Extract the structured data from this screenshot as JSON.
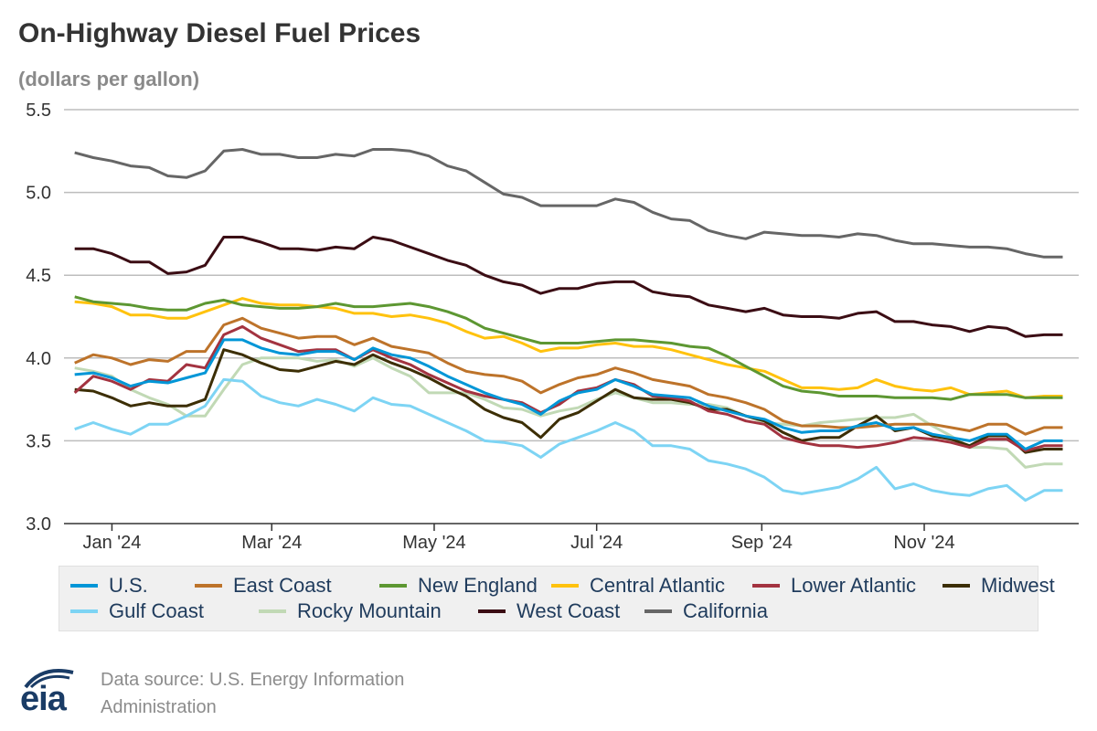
{
  "chart_data": {
    "type": "line",
    "title": "On-Highway Diesel Fuel Prices",
    "subtitle": "(dollars per gallon)",
    "ylim": [
      3.0,
      5.5
    ],
    "yticks": [
      "3.0",
      "3.5",
      "4.0",
      "4.5",
      "5.0",
      "5.5"
    ],
    "yticks_values": [
      3.0,
      3.5,
      4.0,
      4.5,
      5.0,
      5.5
    ],
    "grid": true,
    "legend_position": "bottom",
    "x_dates": [
      "2023-12-18",
      "2023-12-25",
      "2024-01-01",
      "2024-01-08",
      "2024-01-15",
      "2024-01-22",
      "2024-01-29",
      "2024-02-05",
      "2024-02-12",
      "2024-02-19",
      "2024-02-26",
      "2024-03-04",
      "2024-03-11",
      "2024-03-18",
      "2024-03-25",
      "2024-04-01",
      "2024-04-08",
      "2024-04-15",
      "2024-04-22",
      "2024-04-29",
      "2024-05-06",
      "2024-05-13",
      "2024-05-20",
      "2024-05-27",
      "2024-06-03",
      "2024-06-10",
      "2024-06-17",
      "2024-06-24",
      "2024-07-01",
      "2024-07-08",
      "2024-07-15",
      "2024-07-22",
      "2024-07-29",
      "2024-08-05",
      "2024-08-12",
      "2024-08-19",
      "2024-08-26",
      "2024-09-02",
      "2024-09-09",
      "2024-09-16",
      "2024-09-23",
      "2024-09-30",
      "2024-10-07",
      "2024-10-14",
      "2024-10-21",
      "2024-10-28",
      "2024-11-04",
      "2024-11-11",
      "2024-11-18",
      "2024-11-25",
      "2024-12-02",
      "2024-12-09",
      "2024-12-16",
      "2024-12-23"
    ],
    "x_ticks": [
      {
        "label": "Jan '24",
        "date": "2024-01-01"
      },
      {
        "label": "Mar '24",
        "date": "2024-03-01"
      },
      {
        "label": "May '24",
        "date": "2024-05-01"
      },
      {
        "label": "Jul '24",
        "date": "2024-07-01"
      },
      {
        "label": "Sep '24",
        "date": "2024-09-01"
      },
      {
        "label": "Nov '24",
        "date": "2024-11-01"
      }
    ],
    "series": [
      {
        "name": "U.S.",
        "color": "#0096d7",
        "values": [
          3.9,
          3.91,
          3.88,
          3.83,
          3.86,
          3.85,
          3.88,
          3.91,
          4.11,
          4.11,
          4.06,
          4.03,
          4.02,
          4.04,
          4.04,
          3.99,
          4.06,
          4.02,
          4.0,
          3.95,
          3.89,
          3.84,
          3.79,
          3.75,
          3.72,
          3.66,
          3.74,
          3.79,
          3.81,
          3.87,
          3.83,
          3.78,
          3.77,
          3.76,
          3.71,
          3.68,
          3.65,
          3.63,
          3.58,
          3.55,
          3.56,
          3.56,
          3.59,
          3.61,
          3.57,
          3.58,
          3.54,
          3.52,
          3.5,
          3.54,
          3.54,
          3.45,
          3.5,
          3.5
        ]
      },
      {
        "name": "East Coast",
        "color": "#bd732a",
        "values": [
          3.97,
          4.02,
          4.0,
          3.96,
          3.99,
          3.98,
          4.04,
          4.04,
          4.2,
          4.24,
          4.18,
          4.15,
          4.12,
          4.13,
          4.13,
          4.08,
          4.12,
          4.07,
          4.05,
          4.03,
          3.97,
          3.92,
          3.9,
          3.89,
          3.86,
          3.79,
          3.84,
          3.88,
          3.9,
          3.94,
          3.91,
          3.87,
          3.85,
          3.83,
          3.78,
          3.76,
          3.73,
          3.69,
          3.62,
          3.59,
          3.59,
          3.58,
          3.58,
          3.59,
          3.6,
          3.6,
          3.6,
          3.58,
          3.56,
          3.6,
          3.6,
          3.54,
          3.58,
          3.58
        ]
      },
      {
        "name": "New England",
        "color": "#5d9732",
        "values": [
          4.37,
          4.34,
          4.33,
          4.32,
          4.3,
          4.29,
          4.29,
          4.33,
          4.35,
          4.32,
          4.31,
          4.3,
          4.3,
          4.31,
          4.33,
          4.31,
          4.31,
          4.32,
          4.33,
          4.31,
          4.28,
          4.24,
          4.18,
          4.15,
          4.12,
          4.09,
          4.09,
          4.09,
          4.1,
          4.11,
          4.11,
          4.1,
          4.09,
          4.07,
          4.06,
          4.01,
          3.95,
          3.89,
          3.83,
          3.8,
          3.79,
          3.77,
          3.77,
          3.77,
          3.76,
          3.76,
          3.76,
          3.75,
          3.78,
          3.78,
          3.78,
          3.76,
          3.76,
          3.76
        ]
      },
      {
        "name": "Central Atlantic",
        "color": "#ffc20e",
        "values": [
          4.34,
          4.33,
          4.31,
          4.26,
          4.26,
          4.24,
          4.24,
          4.28,
          4.32,
          4.36,
          4.33,
          4.32,
          4.32,
          4.31,
          4.3,
          4.27,
          4.27,
          4.25,
          4.26,
          4.24,
          4.21,
          4.16,
          4.12,
          4.13,
          4.09,
          4.04,
          4.06,
          4.06,
          4.08,
          4.09,
          4.07,
          4.07,
          4.05,
          4.02,
          3.99,
          3.96,
          3.94,
          3.92,
          3.87,
          3.82,
          3.82,
          3.81,
          3.82,
          3.87,
          3.83,
          3.81,
          3.8,
          3.82,
          3.78,
          3.79,
          3.8,
          3.76,
          3.77,
          3.77
        ]
      },
      {
        "name": "Lower Atlantic",
        "color": "#a33340",
        "values": [
          3.79,
          3.89,
          3.86,
          3.81,
          3.87,
          3.86,
          3.96,
          3.94,
          4.14,
          4.19,
          4.12,
          4.08,
          4.04,
          4.05,
          4.05,
          3.99,
          4.05,
          4.0,
          3.96,
          3.9,
          3.85,
          3.8,
          3.77,
          3.75,
          3.73,
          3.67,
          3.72,
          3.8,
          3.82,
          3.87,
          3.84,
          3.77,
          3.76,
          3.74,
          3.68,
          3.66,
          3.62,
          3.6,
          3.52,
          3.49,
          3.47,
          3.47,
          3.46,
          3.47,
          3.49,
          3.52,
          3.51,
          3.49,
          3.46,
          3.51,
          3.51,
          3.44,
          3.47,
          3.47
        ]
      },
      {
        "name": "Midwest",
        "color": "#3c2e05",
        "values": [
          3.81,
          3.8,
          3.76,
          3.71,
          3.73,
          3.71,
          3.71,
          3.75,
          4.05,
          4.02,
          3.97,
          3.93,
          3.92,
          3.95,
          3.98,
          3.96,
          4.02,
          3.97,
          3.93,
          3.88,
          3.82,
          3.77,
          3.69,
          3.64,
          3.61,
          3.52,
          3.63,
          3.67,
          3.74,
          3.81,
          3.76,
          3.75,
          3.75,
          3.73,
          3.69,
          3.69,
          3.65,
          3.62,
          3.55,
          3.5,
          3.52,
          3.52,
          3.59,
          3.65,
          3.56,
          3.58,
          3.53,
          3.51,
          3.47,
          3.53,
          3.53,
          3.43,
          3.45,
          3.45
        ]
      },
      {
        "name": "Gulf Coast",
        "color": "#7dd4f4",
        "values": [
          3.57,
          3.61,
          3.57,
          3.54,
          3.6,
          3.6,
          3.65,
          3.71,
          3.87,
          3.86,
          3.77,
          3.73,
          3.71,
          3.75,
          3.72,
          3.68,
          3.76,
          3.72,
          3.71,
          3.66,
          3.61,
          3.56,
          3.5,
          3.49,
          3.47,
          3.4,
          3.48,
          3.52,
          3.56,
          3.61,
          3.56,
          3.47,
          3.47,
          3.45,
          3.38,
          3.36,
          3.33,
          3.28,
          3.2,
          3.18,
          3.2,
          3.22,
          3.27,
          3.34,
          3.21,
          3.24,
          3.2,
          3.18,
          3.17,
          3.21,
          3.23,
          3.14,
          3.2,
          3.2
        ]
      },
      {
        "name": "Rocky Mountain",
        "color": "#c1d9b5",
        "values": [
          3.94,
          3.92,
          3.89,
          3.81,
          3.76,
          3.72,
          3.65,
          3.65,
          3.81,
          3.96,
          4.0,
          4.0,
          4.0,
          3.98,
          3.99,
          3.95,
          4.0,
          3.94,
          3.89,
          3.79,
          3.79,
          3.79,
          3.75,
          3.7,
          3.69,
          3.65,
          3.68,
          3.7,
          3.75,
          3.79,
          3.76,
          3.73,
          3.73,
          3.72,
          3.72,
          3.7,
          3.65,
          3.61,
          3.6,
          3.59,
          3.61,
          3.62,
          3.63,
          3.64,
          3.64,
          3.66,
          3.59,
          3.53,
          3.46,
          3.46,
          3.45,
          3.34,
          3.36,
          3.36
        ]
      },
      {
        "name": "West Coast",
        "color": "#3b0d14",
        "values": [
          4.66,
          4.66,
          4.63,
          4.58,
          4.58,
          4.51,
          4.52,
          4.56,
          4.73,
          4.73,
          4.7,
          4.66,
          4.66,
          4.65,
          4.67,
          4.66,
          4.73,
          4.71,
          4.67,
          4.63,
          4.59,
          4.56,
          4.5,
          4.46,
          4.44,
          4.39,
          4.42,
          4.42,
          4.45,
          4.46,
          4.46,
          4.4,
          4.38,
          4.37,
          4.32,
          4.3,
          4.28,
          4.3,
          4.26,
          4.25,
          4.25,
          4.24,
          4.27,
          4.28,
          4.22,
          4.22,
          4.2,
          4.19,
          4.16,
          4.19,
          4.18,
          4.13,
          4.14,
          4.14
        ]
      },
      {
        "name": "California",
        "color": "#666666",
        "values": [
          5.24,
          5.21,
          5.19,
          5.16,
          5.15,
          5.1,
          5.09,
          5.13,
          5.25,
          5.26,
          5.23,
          5.23,
          5.21,
          5.21,
          5.23,
          5.22,
          5.26,
          5.26,
          5.25,
          5.22,
          5.16,
          5.13,
          5.06,
          4.99,
          4.97,
          4.92,
          4.92,
          4.92,
          4.92,
          4.96,
          4.94,
          4.88,
          4.84,
          4.83,
          4.77,
          4.74,
          4.72,
          4.76,
          4.75,
          4.74,
          4.74,
          4.73,
          4.75,
          4.74,
          4.71,
          4.69,
          4.69,
          4.68,
          4.67,
          4.67,
          4.66,
          4.63,
          4.61,
          4.61
        ]
      }
    ]
  },
  "source": {
    "line1": "Data source: U.S. Energy Information",
    "line2": "Administration"
  },
  "logo": {
    "text": "eia"
  }
}
